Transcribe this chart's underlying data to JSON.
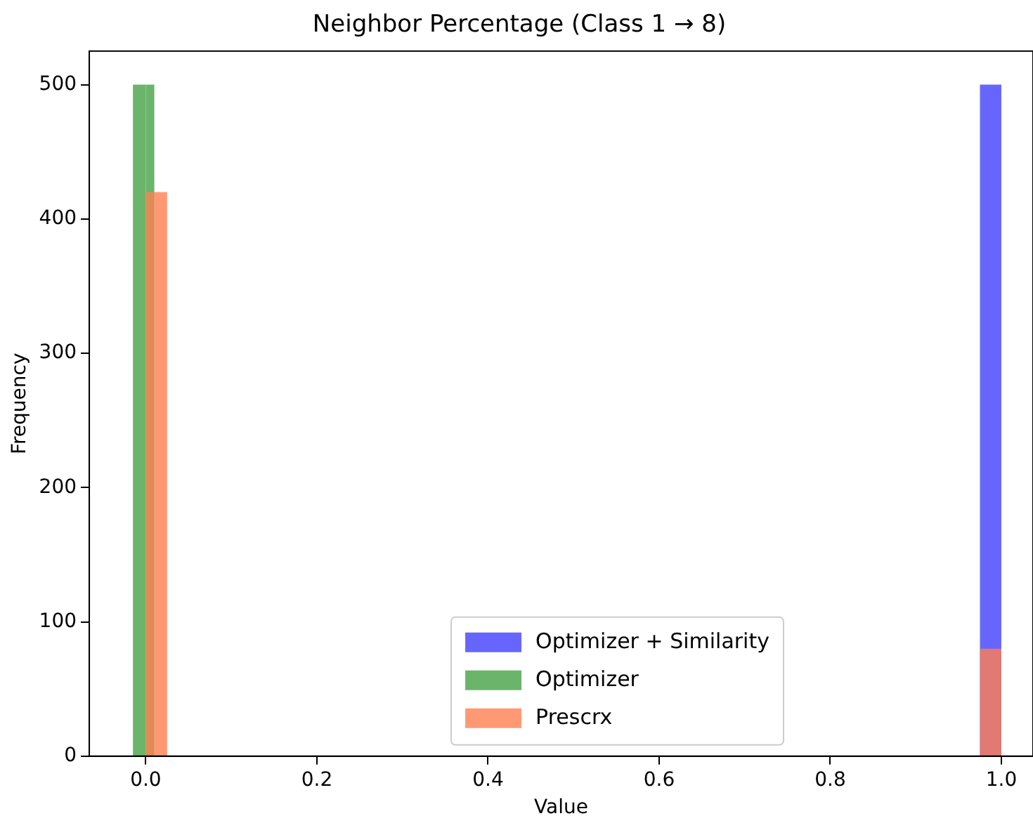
{
  "chart_data": {
    "type": "histogram",
    "title": "Neighbor Percentage (Class 1 → 8)",
    "xlabel": "Value",
    "ylabel": "Frequency",
    "bins": [
      -0.015,
      0,
      0.01,
      0.025,
      0.975,
      1.0
    ],
    "series": [
      {
        "name": "Optimizer + Similarity",
        "color": "#6666ff",
        "values": [
          0,
          0,
          0,
          0,
          500
        ]
      },
      {
        "name": "Optimizer",
        "color": "#6ab56a",
        "values": [
          500,
          500,
          0,
          0,
          0
        ]
      },
      {
        "name": "Prescrx",
        "color": "#ff7f50",
        "values": [
          0,
          420,
          420,
          0,
          80
        ]
      }
    ],
    "xlim": [
      -0.066,
      1.037
    ],
    "ylim": [
      0,
      525
    ],
    "xticks": [
      {
        "value": 0,
        "label": "0.0"
      },
      {
        "value": 0.2,
        "label": "0.2"
      },
      {
        "value": 0.4,
        "label": "0.4"
      },
      {
        "value": 0.6,
        "label": "0.6"
      },
      {
        "value": 0.8,
        "label": "0.8"
      },
      {
        "value": 1,
        "label": "1.0"
      }
    ],
    "yticks": [
      0,
      100,
      200,
      300,
      400,
      500
    ],
    "legend": "bottom"
  }
}
